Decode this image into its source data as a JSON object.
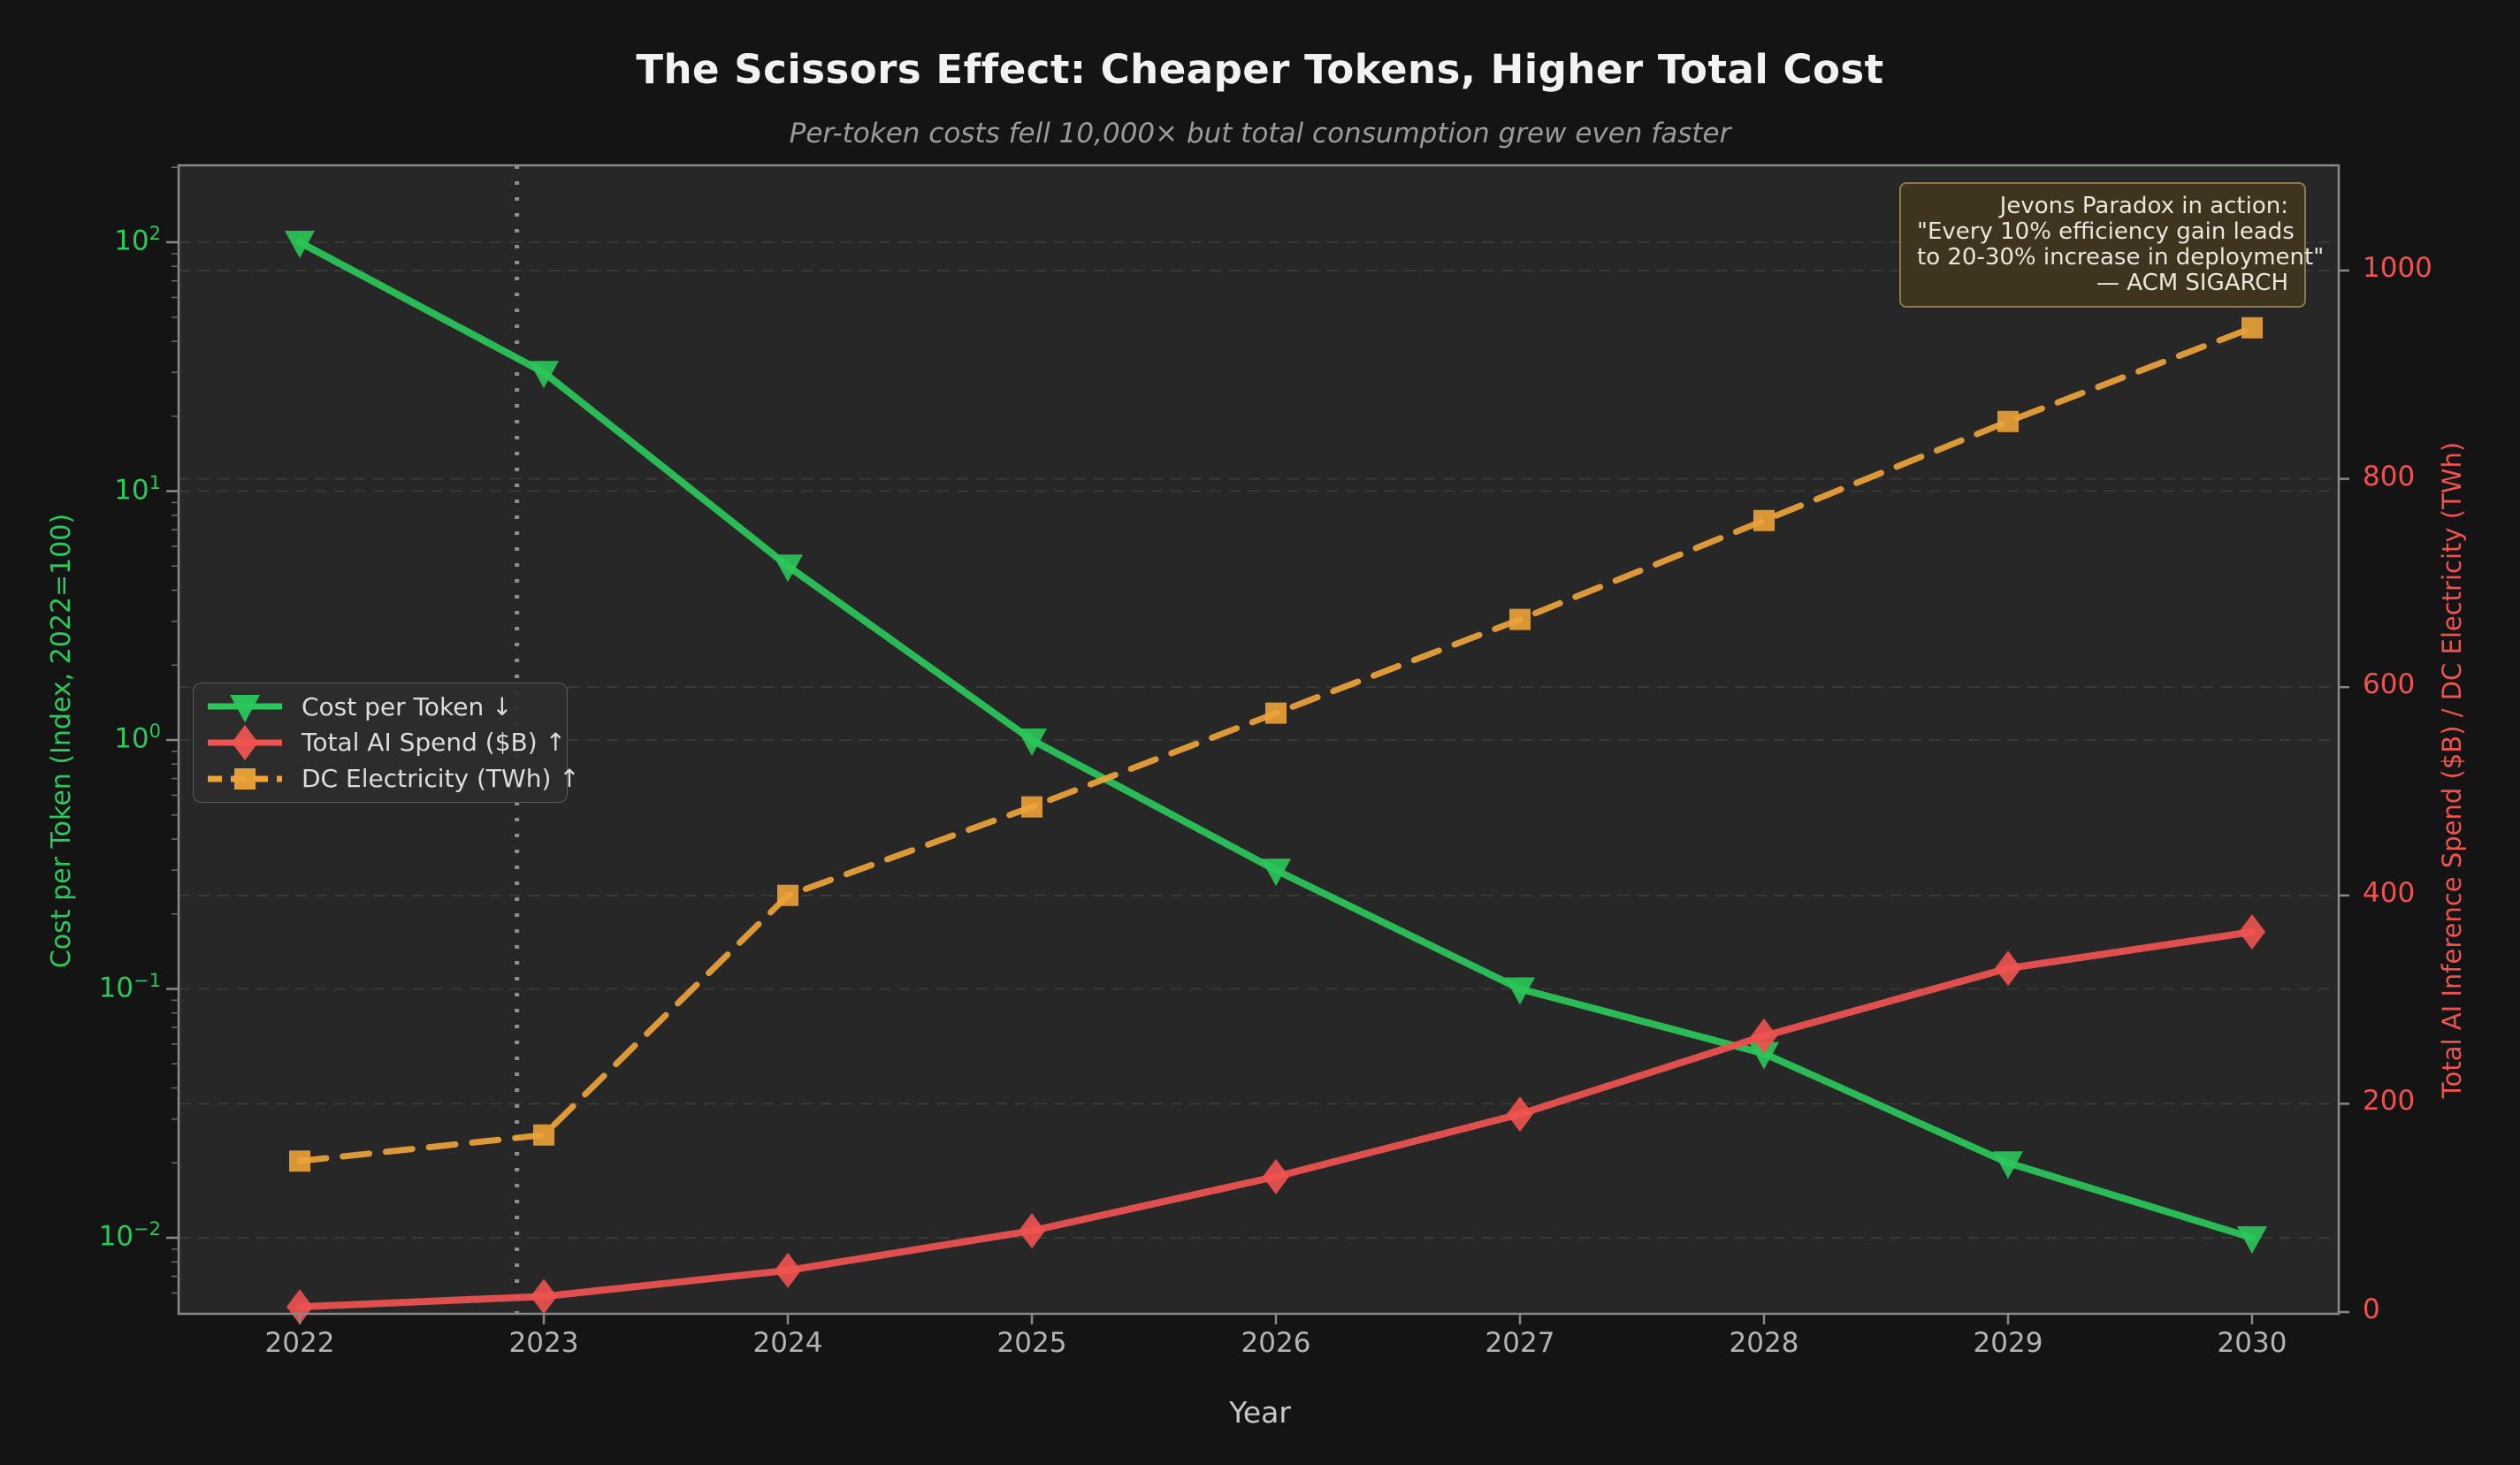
{
  "title": "The Scissors Effect: Cheaper Tokens, Higher Total Cost",
  "subtitle": "Per-token costs fell 10,000× but total consumption grew even faster",
  "colors": {
    "background": "#141414",
    "plot_background": "#272727",
    "green": "#2bc85a",
    "red": "#ef5350",
    "orange": "#eda338",
    "grid": "rgba(255,255,255,0.10)",
    "spine": "#888888",
    "vline": "#8e8e8e",
    "x_tick_text": "#b4b4b4"
  },
  "axes": {
    "x": {
      "label": "Year",
      "ticks": [
        "2022",
        "2023",
        "2024",
        "2025",
        "2026",
        "2027",
        "2028",
        "2029",
        "2030"
      ]
    },
    "y_left": {
      "label": "Cost per Token (Index, 2022=100)",
      "scale": "log",
      "tick_exponents": [
        2,
        1,
        0,
        -1,
        -2
      ]
    },
    "y_right": {
      "label": "Total AI Inference Spend ($B) / DC Electricity (TWh)",
      "ticks": [
        0,
        200,
        400,
        600,
        800,
        1000
      ]
    }
  },
  "legend": {
    "items": [
      {
        "label": "Cost per Token ↓",
        "color_key": "green",
        "marker": "triangle-down",
        "dash": false
      },
      {
        "label": "Total AI Spend ($B) ↑",
        "color_key": "red",
        "marker": "diamond",
        "dash": false
      },
      {
        "label": "DC Electricity (TWh) ↑",
        "color_key": "orange",
        "marker": "square",
        "dash": true
      }
    ]
  },
  "annotation": {
    "lines": [
      "Jevons Paradox in action:",
      "\"Every 10% efficiency gain leads",
      "to 20-30% increase in deployment\"",
      "— ACM SIGARCH"
    ]
  },
  "chart_data": {
    "type": "line",
    "x": [
      2022,
      2023,
      2024,
      2025,
      2026,
      2027,
      2028,
      2029,
      2030
    ],
    "series": [
      {
        "name": "Cost per Token ↓",
        "axis": "left",
        "marker": "triangle-down",
        "line_style": "solid",
        "color_key": "green",
        "values": [
          100,
          30,
          5,
          1,
          0.3,
          0.1,
          0.055,
          0.02,
          0.01
        ]
      },
      {
        "name": "Total AI Spend ($B) ↑",
        "axis": "right",
        "marker": "diamond",
        "line_style": "solid",
        "color_key": "red",
        "values": [
          5,
          15,
          40,
          78,
          130,
          190,
          265,
          330,
          365
        ]
      },
      {
        "name": "DC Electricity (TWh) ↑",
        "axis": "right",
        "marker": "square",
        "line_style": "dashed",
        "color_key": "orange",
        "values": [
          145,
          170,
          400,
          485,
          575,
          665,
          760,
          855,
          945
        ]
      }
    ],
    "y_left_scale": "log",
    "y_left_ticks": [
      100,
      10,
      1,
      0.1,
      0.01
    ],
    "y_right_range": [
      0,
      1000
    ],
    "vline_x": 2022.89,
    "grid": true,
    "legend_position": "center-left",
    "title": "The Scissors Effect: Cheaper Tokens, Higher Total Cost",
    "xlabel": "Year",
    "ylabel_left": "Cost per Token (Index, 2022=100)",
    "ylabel_right": "Total AI Inference Spend ($B) / DC Electricity (TWh)"
  }
}
